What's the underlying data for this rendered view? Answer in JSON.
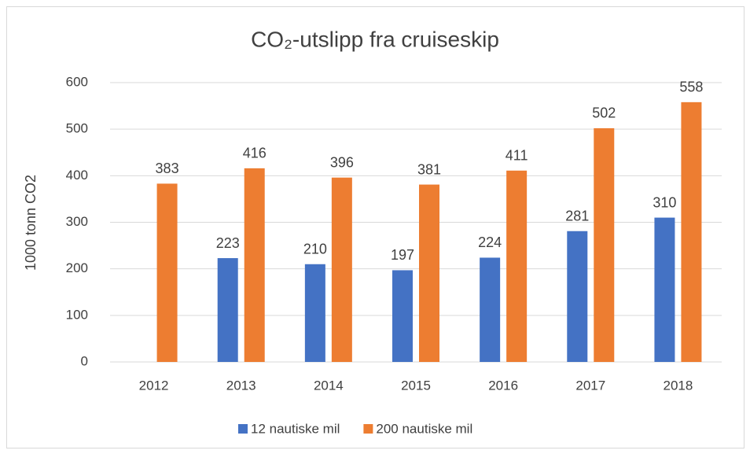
{
  "chart_data": {
    "type": "bar",
    "title": "CO₂-utslipp fra cruiseskip",
    "y_label": "1000 tonn CO2",
    "categories": [
      "2012",
      "2013",
      "2014",
      "2015",
      "2016",
      "2017",
      "2018"
    ],
    "series": [
      {
        "name": "12 nautiske mil",
        "color": "#4472c4",
        "values": [
          null,
          223,
          210,
          197,
          224,
          281,
          310
        ]
      },
      {
        "name": "200 nautiske mil",
        "color": "#ed7d31",
        "values": [
          383,
          416,
          396,
          381,
          411,
          502,
          558
        ]
      }
    ],
    "ylim": [
      0,
      600
    ],
    "yticks": [
      0,
      100,
      200,
      300,
      400,
      500,
      600
    ],
    "grid": true,
    "legend": "bottom"
  }
}
